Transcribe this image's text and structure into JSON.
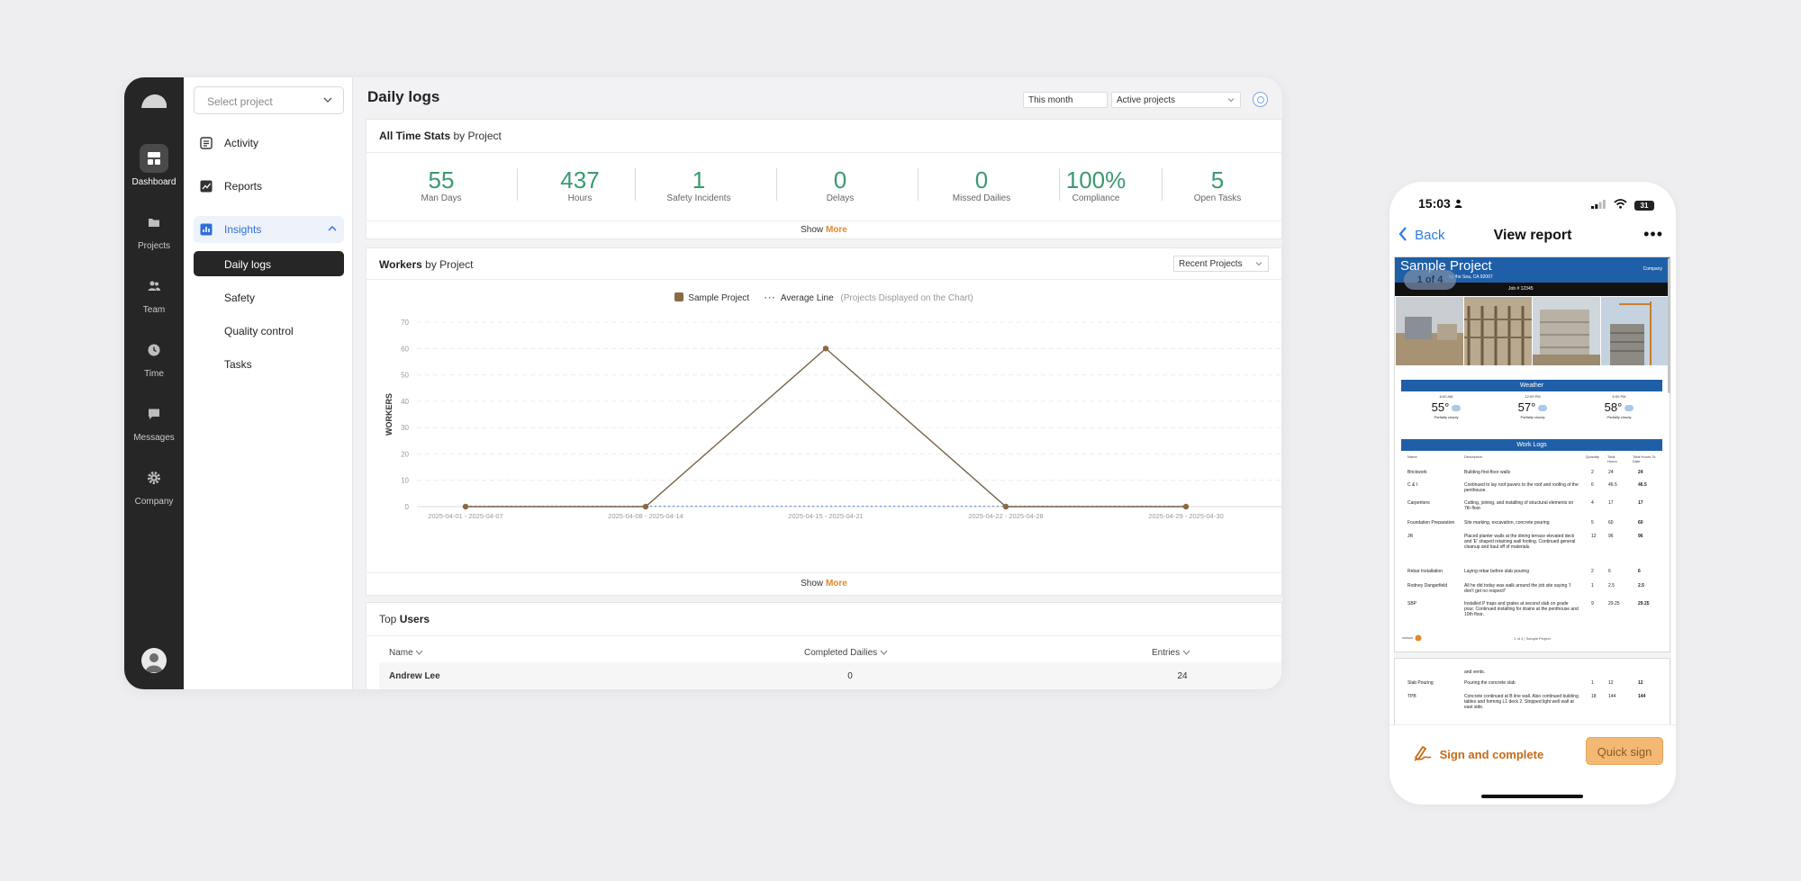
{
  "sidebar": {
    "rail": [
      {
        "label": "Dashboard",
        "icon": "dashboard-icon",
        "active": true
      },
      {
        "label": "Projects",
        "icon": "folder-icon"
      },
      {
        "label": "Team",
        "icon": "team-icon"
      },
      {
        "label": "Time",
        "icon": "clock-icon"
      },
      {
        "label": "Messages",
        "icon": "message-icon"
      },
      {
        "label": "Company",
        "icon": "gear-icon"
      }
    ],
    "project_select_placeholder": "Select project",
    "items": [
      {
        "label": "Activity",
        "icon": "activity-icon"
      },
      {
        "label": "Reports",
        "icon": "reports-icon"
      },
      {
        "label": "Insights",
        "icon": "insights-icon"
      }
    ],
    "subitems": [
      "Daily logs",
      "Safety",
      "Quality control",
      "Tasks"
    ]
  },
  "header": {
    "title": "Daily logs",
    "period": "This month",
    "project_filter": "Active projects"
  },
  "stats_card": {
    "title_bold": "All Time Stats",
    "title_rest": " by Project",
    "stats": [
      {
        "value": "55",
        "label": "Man Days"
      },
      {
        "value": "437",
        "label": "Hours"
      },
      {
        "value": "1",
        "label": "Safety Incidents"
      },
      {
        "value": "0",
        "label": "Delays"
      },
      {
        "value": "0",
        "label": "Missed Dailies"
      },
      {
        "value": "100%",
        "label": "Compliance"
      },
      {
        "value": "5",
        "label": "Open Tasks"
      }
    ],
    "show": "Show",
    "more": "More"
  },
  "workers_card": {
    "title_bold": "Workers",
    "title_rest": " by Project",
    "recent_filter": "Recent Projects",
    "legend_series": "Sample Project",
    "legend_avg": "Average Line",
    "legend_note": "(Projects Displayed on the Chart)",
    "show": "Show",
    "more": "More"
  },
  "chart_data": {
    "type": "line",
    "ylabel": "WORKERS",
    "ylim": [
      0,
      70
    ],
    "yticks": [
      "0",
      "10",
      "20",
      "30",
      "40",
      "50",
      "60",
      "70"
    ],
    "categories": [
      "2025-04-01 - 2025-04-07",
      "2025-04-08 - 2025-04-14",
      "2025-04-15 - 2025-04-21",
      "2025-04-22 - 2025-04-28",
      "2025-04-29 - 2025-04-30"
    ],
    "series": [
      {
        "name": "Sample Project",
        "values": [
          0,
          0,
          60,
          0,
          0
        ],
        "color": "#7a6248"
      }
    ],
    "average_line": {
      "name": "Average Line",
      "color": "#3b78d8"
    },
    "grid": true
  },
  "top_users": {
    "title_rest": "Top ",
    "title_bold": "Users",
    "columns": [
      "Name",
      "Completed Dailies",
      "Entries"
    ],
    "rows": [
      {
        "name": "Andrew Lee",
        "completed": "0",
        "entries": "24"
      }
    ]
  },
  "phone": {
    "time": "15:03",
    "battery": "31",
    "back": "Back",
    "title": "View report",
    "more": "•••",
    "page_indicator": "1 of 4",
    "report": {
      "project": "Sample Project",
      "company": "Company",
      "address": "by the Sea, CA 92007",
      "job": "Job # 12345",
      "weather_title": "Weather",
      "weather": [
        {
          "time": "6:00 AM",
          "temp": "55°",
          "cond": "Partially cloudy"
        },
        {
          "time": "12:00 PM",
          "temp": "57°",
          "cond": "Partially cloudy"
        },
        {
          "time": "6:00 PM",
          "temp": "58°",
          "cond": "Partially cloudy"
        }
      ],
      "worklogs_title": "Work Logs",
      "worklog_headers": [
        "Name",
        "Description",
        "Quantity",
        "Total Hours",
        "Total Hours To Date"
      ],
      "worklogs": [
        {
          "name": "Brickwork",
          "desc": "Building first-floor walls",
          "q": "2",
          "h": "24",
          "t": "24"
        },
        {
          "name": "C & I",
          "desc": "Continued to lay roof pavers to the roof and roofing of the penthouse.",
          "q": "6",
          "h": "46.5",
          "t": "46.5"
        },
        {
          "name": "Carpenters",
          "desc": "Cutting, joining, and installing of structural elements on 7th floor.",
          "q": "4",
          "h": "17",
          "t": "17"
        },
        {
          "name": "Foundation Preparation",
          "desc": "Site marking, excavation, concrete pouring",
          "q": "5",
          "h": "60",
          "t": "60"
        },
        {
          "name": "JR",
          "desc": "Placed planter walls at the dining terrace elevated deck and 'E' shaped retaining wall footing. Continued general cleanup and haul off of materials.",
          "q": "12",
          "h": "96",
          "t": "96"
        },
        {
          "name": "Rebar Installation",
          "desc": "Laying rebar before slab pouring",
          "q": "2",
          "h": "6",
          "t": "6"
        },
        {
          "name": "Rodney Dangerfield",
          "desc": "All he did today was walk around the job site saying 'I don't get no respect!'",
          "q": "1",
          "h": "2.5",
          "t": "2.5"
        },
        {
          "name": "SBP",
          "desc": "Installed P traps and grates at second slab on grade pour. Continued installing for drains at the penthouse and 10th floor.",
          "q": "9",
          "h": "29.25",
          "t": "29.25"
        }
      ],
      "page_footer": "1 of 4 | Sample Project",
      "page2": [
        {
          "name": "",
          "desc": "and vents.",
          "q": "",
          "h": "",
          "t": ""
        },
        {
          "name": "Slab Pouring",
          "desc": "Pouring the concrete slab",
          "q": "1",
          "h": "12",
          "t": "12"
        },
        {
          "name": "TPB",
          "desc": "Concrete continued at B line wall. Also continued building tables and forming L1 deck 2. Stripped light well wall at east side.",
          "q": "18",
          "h": "144",
          "t": "144"
        }
      ]
    },
    "sign_label": "Sign and complete",
    "quick_label": "Quick sign"
  },
  "colors": {
    "accent_blue": "#2f6fd6",
    "stat_green": "#3a9a6e",
    "more_orange": "#e0892a",
    "report_blue": "#1f5fa8",
    "sign_orange": "#c96a16"
  }
}
